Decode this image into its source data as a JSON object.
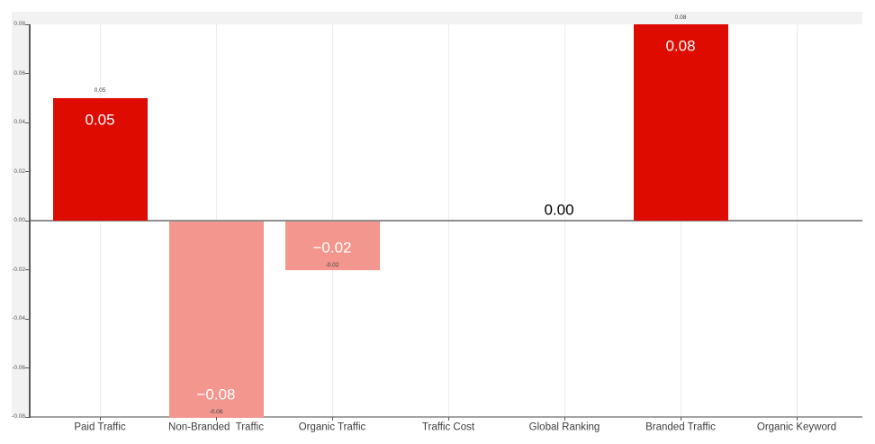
{
  "chart_data": {
    "type": "bar",
    "title": "",
    "xlabel": "",
    "ylabel": "",
    "categories": [
      "Paid Traffic",
      "Non-Branded  Traffic",
      "Organic Traffic",
      "Traffic Cost",
      "Global Ranking",
      "Branded Traffic",
      "Organic Keyword"
    ],
    "values": [
      0.05,
      -0.08,
      -0.02,
      0.0,
      0.0,
      0.08,
      0.0
    ],
    "bar_labels": [
      "0.05",
      "−0.08",
      "−0.02",
      "",
      "0.00",
      "0.08",
      ""
    ],
    "small_labels": [
      "0.05",
      "-0.08",
      "-0.02",
      "",
      "",
      "0.08",
      ""
    ],
    "ylim": [
      -0.08,
      0.08
    ],
    "y_tick_step": 0.02,
    "y_ticks": [
      "0.08",
      "0.06",
      "0.04",
      "0.02",
      "0.00",
      "-0.02",
      "-0.04",
      "-0.06",
      "-0.08"
    ],
    "grid": "vertical-category-gridlines",
    "legend": "none",
    "colors": {
      "positive_bar": "#dd0b00",
      "negative_bar": "#f2968e",
      "bar_label_text": "#ffffff",
      "zero_label_text": "#000000",
      "small_label_text": "#3d3d3d",
      "category_label_text": "#3d3d3d",
      "tick_label_text": "#595959",
      "axis_line": "#595959",
      "zero_line": "#8f8f8f",
      "plot_bottom_border": "#a3a3a3",
      "gridline": "#ededed",
      "chart_background": "#f2f2f2",
      "plot_background": "#ffffff",
      "page_background": "#ffffff"
    }
  }
}
